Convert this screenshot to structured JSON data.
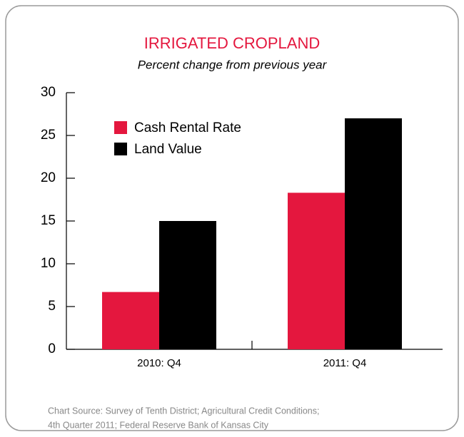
{
  "chart_data": {
    "type": "bar",
    "title": "IRRIGATED CROPLAND",
    "subtitle": "Percent change from previous year",
    "categories": [
      "2010: Q4",
      "2011: Q4"
    ],
    "series": [
      {
        "name": "Cash Rental Rate",
        "color": "#e4173e",
        "values": [
          6.7,
          18.3
        ]
      },
      {
        "name": "Land Value",
        "color": "#000000",
        "values": [
          15,
          27
        ]
      }
    ],
    "ylim": [
      0,
      30
    ],
    "yticks": [
      0,
      5,
      10,
      15,
      20,
      25,
      30
    ],
    "legend": "upper left",
    "source": [
      "Chart Source: Survey of Tenth District; Agricultural Credit Conditions;",
      "4th Quarter 2011; Federal Reserve Bank of Kansas City"
    ]
  }
}
